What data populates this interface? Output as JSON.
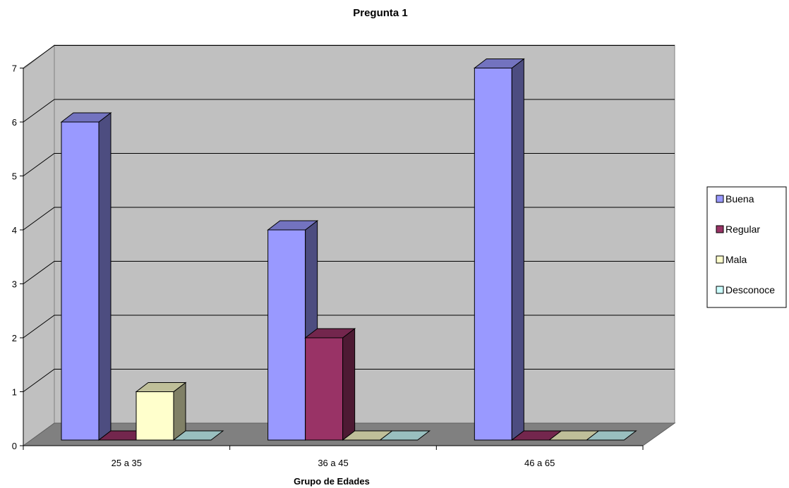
{
  "chart_data": {
    "type": "bar",
    "title": "Pregunta 1",
    "xlabel": "Grupo de Edades",
    "ylabel": "",
    "categories": [
      "25 a 35",
      "36 a 45",
      "46 a 65"
    ],
    "ylim": [
      0,
      7
    ],
    "yticks": [
      "0",
      "1",
      "2",
      "3",
      "4",
      "5",
      "6",
      "7"
    ],
    "grid": true,
    "legend_position": "right",
    "series": [
      {
        "name": "Buena",
        "values": [
          6,
          4,
          7
        ],
        "color": "#9999ff"
      },
      {
        "name": "Regular",
        "values": [
          0,
          2,
          0
        ],
        "color": "#993366"
      },
      {
        "name": "Mala",
        "values": [
          1,
          0,
          0
        ],
        "color": "#ffffcc"
      },
      {
        "name": "Desconoce",
        "values": [
          0,
          0,
          0
        ],
        "color": "#ccffff"
      }
    ]
  }
}
